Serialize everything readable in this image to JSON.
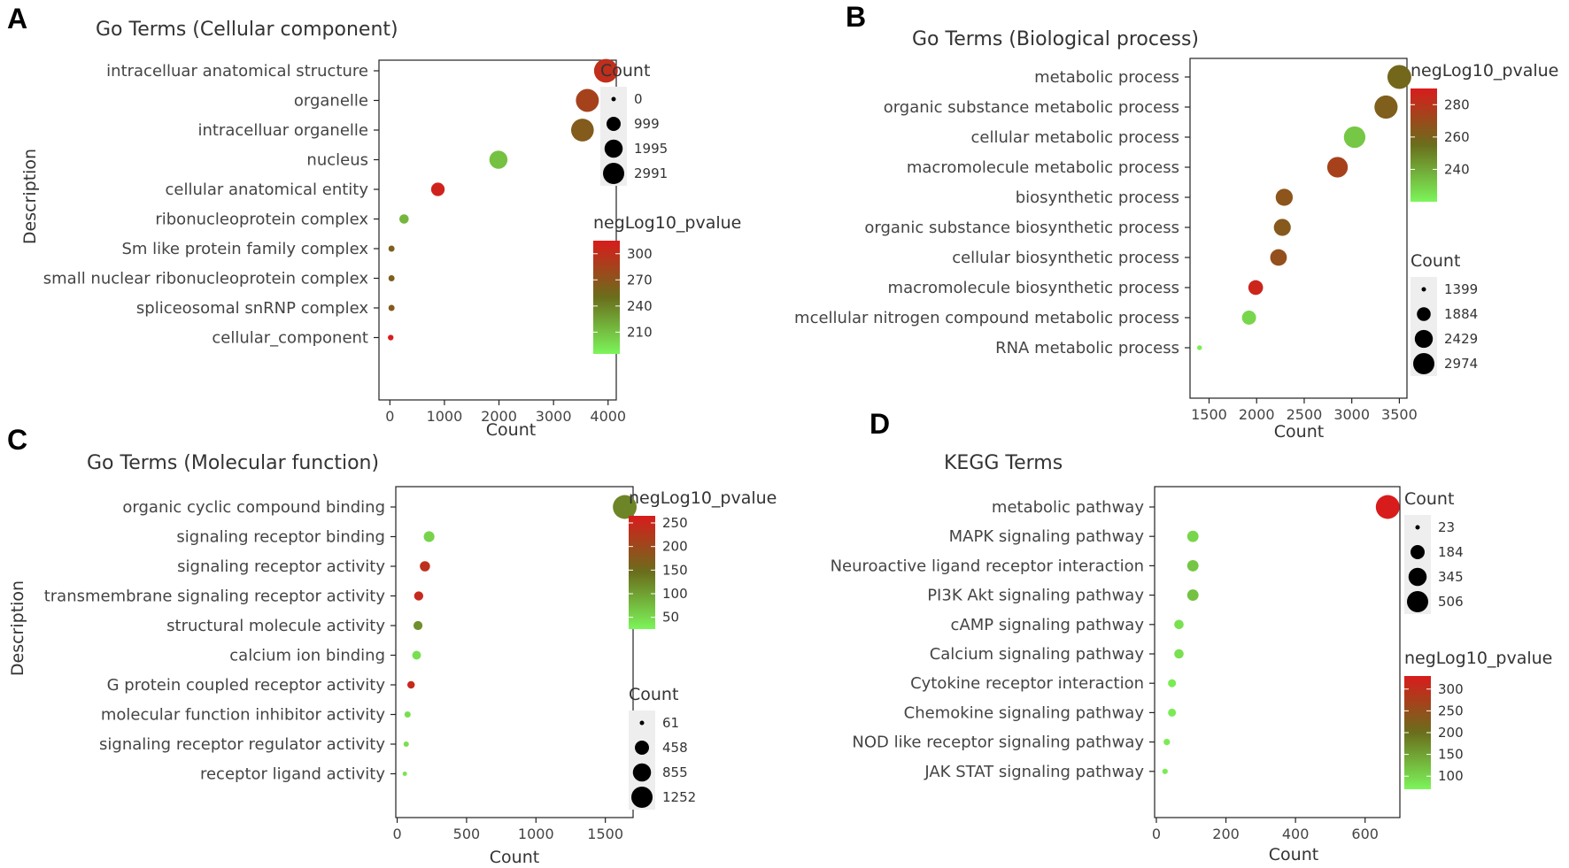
{
  "colors": {
    "low": "#7cf55a",
    "mid": "#6a6e1c",
    "high": "#d81c1c",
    "axis": "#222222",
    "legend_bg": "#eeeeee"
  },
  "chart_data": [
    {
      "panel": "A",
      "type": "scatter",
      "title": "Go Terms (Cellular component)",
      "xlabel": "Count",
      "ylabel": "Description",
      "xlim": [
        -200,
        4150
      ],
      "xticks": [
        0,
        1000,
        2000,
        3000,
        4000
      ],
      "categories": [
        "intracelluar anatomical structure",
        "organelle",
        "intracelluar organelle",
        "nucleus",
        "cellular anatomical entity",
        "ribonucleoprotein complex",
        "Sm like protein family complex",
        "small nuclear ribonucleoprotein complex",
        "spliceosomal snRNP complex",
        "cellular_component"
      ],
      "x": [
        3960,
        3620,
        3530,
        1990,
        880,
        260,
        30,
        30,
        30,
        15
      ],
      "color_values": [
        300,
        285,
        265,
        210,
        310,
        215,
        262,
        262,
        265,
        315
      ],
      "size_legend": {
        "title": "Count",
        "labels": [
          "0",
          "999",
          "1995",
          "2991"
        ],
        "values": [
          0,
          999,
          1995,
          2991
        ]
      },
      "color_legend": {
        "title": "negLog10_pvalue",
        "labels": [
          "300",
          "270",
          "240",
          "210"
        ],
        "values": [
          300,
          270,
          240,
          210
        ],
        "range": [
          185,
          315
        ]
      },
      "legend_order": [
        "size",
        "color"
      ]
    },
    {
      "panel": "B",
      "type": "scatter",
      "title": "Go Terms (Biological process)",
      "xlabel": "Count",
      "ylabel": "",
      "xlim": [
        1300,
        3580
      ],
      "xticks": [
        1500,
        2000,
        2500,
        3000,
        3500
      ],
      "categories": [
        "metabolic process",
        "organic substance metabolic process",
        "cellular metabolic process",
        "macromolecule metabolic process",
        "biosynthetic process",
        "organic substance biosynthetic process",
        "cellular biosynthetic process",
        "macromolecule biosynthetic process",
        "mcellular nitrogen compound metabolic process",
        "RNA metabolic process"
      ],
      "x": [
        3500,
        3360,
        3030,
        2850,
        2290,
        2270,
        2230,
        1990,
        1920,
        1400
      ],
      "color_values": [
        258,
        262,
        232,
        274,
        266,
        264,
        268,
        286,
        228,
        222
      ],
      "size_legend": {
        "title": "Count",
        "labels": [
          "1399",
          "1884",
          "2429",
          "2974"
        ],
        "values": [
          1399,
          1884,
          2429,
          2974
        ]
      },
      "color_legend": {
        "title": "negLog10_pvalue",
        "labels": [
          "280",
          "260",
          "240"
        ],
        "values": [
          280,
          260,
          240
        ],
        "range": [
          220,
          290
        ]
      },
      "legend_order": [
        "color",
        "size"
      ]
    },
    {
      "panel": "C",
      "type": "scatter",
      "title": "Go Terms (Molecular function)",
      "xlabel": "Count",
      "ylabel": "Description",
      "xlim": [
        -10,
        1700
      ],
      "xticks": [
        0,
        500,
        1000,
        1500
      ],
      "categories": [
        "organic cyclic compound binding",
        "signaling receptor binding",
        "signaling receptor activity",
        "transmembrane signaling receptor activity",
        "structural molecule activity",
        "calcium ion binding",
        "G protein coupled receptor activity",
        "molecular function inhibitor activity",
        "signaling receptor regulator activity",
        "receptor ligand activity"
      ],
      "x": [
        1640,
        230,
        200,
        155,
        150,
        140,
        100,
        75,
        65,
        55
      ],
      "color_values": [
        125,
        55,
        235,
        245,
        115,
        45,
        245,
        45,
        45,
        40
      ],
      "size_legend": {
        "title": "Count",
        "labels": [
          "61",
          "458",
          "855",
          "1252"
        ],
        "values": [
          61,
          458,
          855,
          1252
        ]
      },
      "color_legend": {
        "title": "negLog10_pvalue",
        "labels": [
          "250",
          "200",
          "150",
          "100",
          "50"
        ],
        "values": [
          250,
          200,
          150,
          100,
          50
        ],
        "range": [
          25,
          265
        ]
      },
      "legend_order": [
        "color",
        "size"
      ]
    },
    {
      "panel": "D",
      "type": "scatter",
      "title": "KEGG Terms",
      "xlabel": "Count",
      "ylabel": "",
      "xlim": [
        -5,
        700
      ],
      "xticks": [
        0,
        200,
        400,
        600
      ],
      "categories": [
        "metabolic pathway",
        "MAPK signaling pathway",
        "Neuroactive ligand receptor interaction",
        "PI3K Akt signaling pathway",
        "cAMP signaling pathway",
        "Calcium signaling pathway",
        "Cytokine receptor interaction",
        "Chemokine signaling pathway",
        "NOD like receptor signaling pathway",
        "JAK STAT signaling pathway"
      ],
      "x": [
        665,
        105,
        105,
        105,
        65,
        65,
        45,
        45,
        30,
        25
      ],
      "color_values": [
        330,
        100,
        115,
        120,
        90,
        90,
        80,
        80,
        80,
        80
      ],
      "size_legend": {
        "title": "Count",
        "labels": [
          "23",
          "184",
          "345",
          "506"
        ],
        "values": [
          23,
          184,
          345,
          506
        ]
      },
      "color_legend": {
        "title": "negLog10_pvalue",
        "labels": [
          "300",
          "250",
          "200",
          "150",
          "100"
        ],
        "values": [
          300,
          250,
          200,
          150,
          100
        ],
        "range": [
          70,
          330
        ]
      },
      "legend_order": [
        "size",
        "color"
      ]
    }
  ]
}
